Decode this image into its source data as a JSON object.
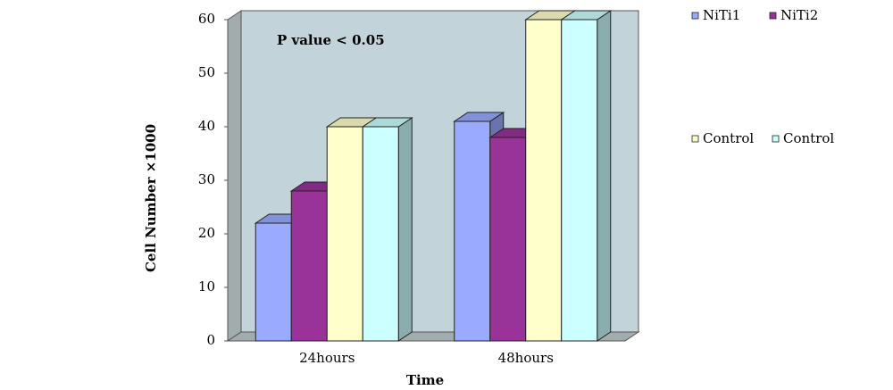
{
  "chart_data": {
    "type": "bar3d",
    "annotation": "P value < 0.05",
    "x_label": "Time",
    "y_label": "Cell Number ×1000",
    "categories": [
      "24hours",
      "48hours"
    ],
    "series": [
      {
        "name": "NiTi1",
        "color": "#9aaaff",
        "values": [
          22,
          41
        ]
      },
      {
        "name": "NiTi2",
        "color": "#993399",
        "values": [
          28,
          38
        ]
      },
      {
        "name": "Control",
        "color": "#ffffcc",
        "values": [
          40,
          60
        ]
      },
      {
        "name": "Control",
        "color": "#ccffff",
        "values": [
          40,
          60
        ]
      }
    ],
    "ylim": [
      0,
      60
    ],
    "yticks": [
      0,
      10,
      20,
      30,
      40,
      50,
      60
    ]
  }
}
